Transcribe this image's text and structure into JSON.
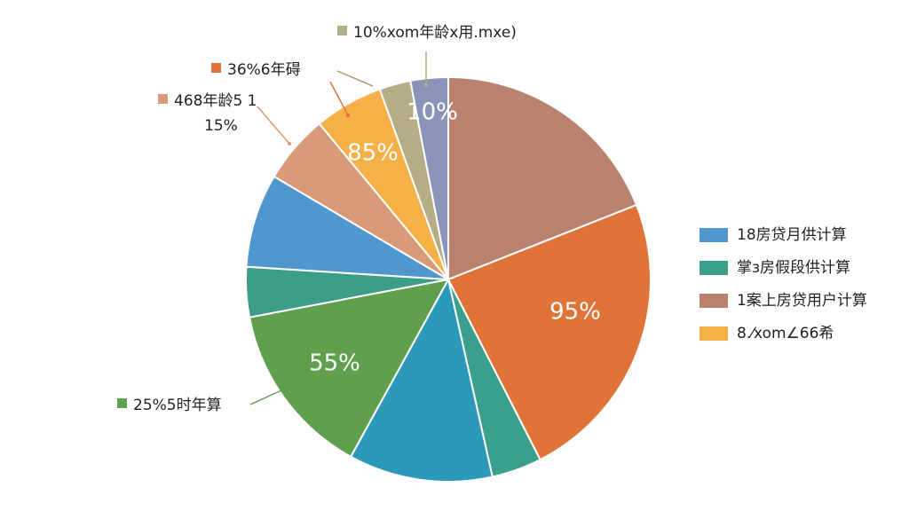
{
  "chart_data": {
    "type": "pie",
    "values": [
      19,
      23.5,
      4,
      11.5,
      14,
      4,
      7.5,
      5.5,
      5.5,
      2.5,
      3
    ],
    "colors": [
      "#b8826e",
      "#e07438",
      "#3aa08c",
      "#2a9ab8",
      "#5ea04e",
      "#3d9e88",
      "#4f97cc",
      "#d99a78",
      "#f5b147",
      "#b4ad86",
      "#8a94b8"
    ],
    "annotations": [
      "95%",
      "55%",
      "85%",
      "10%"
    ],
    "callouts": [
      {
        "lines": [
          "10%xom年龄x用.mxe)"
        ],
        "color": "#b4ad86"
      },
      {
        "lines": [
          "36%6年碍"
        ],
        "color": "#e07438"
      },
      {
        "lines": [
          "468年龄5 1",
          "15%"
        ],
        "color": "#d99a78"
      },
      {
        "lines": [
          "25%5时年算"
        ],
        "color": "#5ea04e"
      }
    ],
    "legend": [
      {
        "label": "18房贷月供计算",
        "color": "#4f97cc"
      },
      {
        "label": "掌з房假段供计算",
        "color": "#3aa08c"
      },
      {
        "label": "1案上房贷用户计算",
        "color": "#b8826e"
      },
      {
        "label": "8.⁄xom∠66希",
        "color": "#f5b147"
      }
    ]
  }
}
